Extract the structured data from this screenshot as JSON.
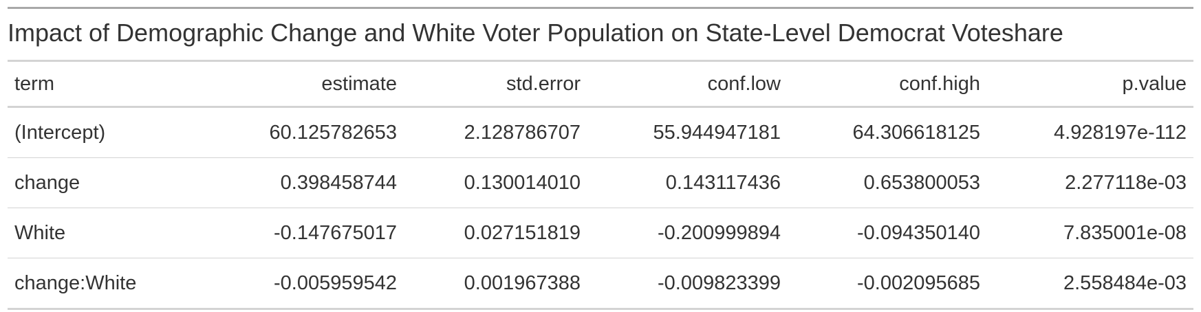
{
  "chart_data": {
    "type": "table",
    "title": "Impact of Demographic Change and White Voter Population on State-Level Democrat Voteshare",
    "columns": [
      "term",
      "estimate",
      "std.error",
      "conf.low",
      "conf.high",
      "p.value"
    ],
    "rows": [
      [
        "(Intercept)",
        "60.125782653",
        "2.128786707",
        "55.944947181",
        "64.306618125",
        "4.928197e-112"
      ],
      [
        "change",
        "0.398458744",
        "0.130014010",
        "0.143117436",
        "0.653800053",
        "2.277118e-03"
      ],
      [
        "White",
        "-0.147675017",
        "0.027151819",
        "-0.200999894",
        "-0.094350140",
        "7.835001e-08"
      ],
      [
        "change:White",
        "-0.005959542",
        "0.001967388",
        "-0.009823399",
        "-0.002095685",
        "2.558484e-03"
      ]
    ]
  }
}
